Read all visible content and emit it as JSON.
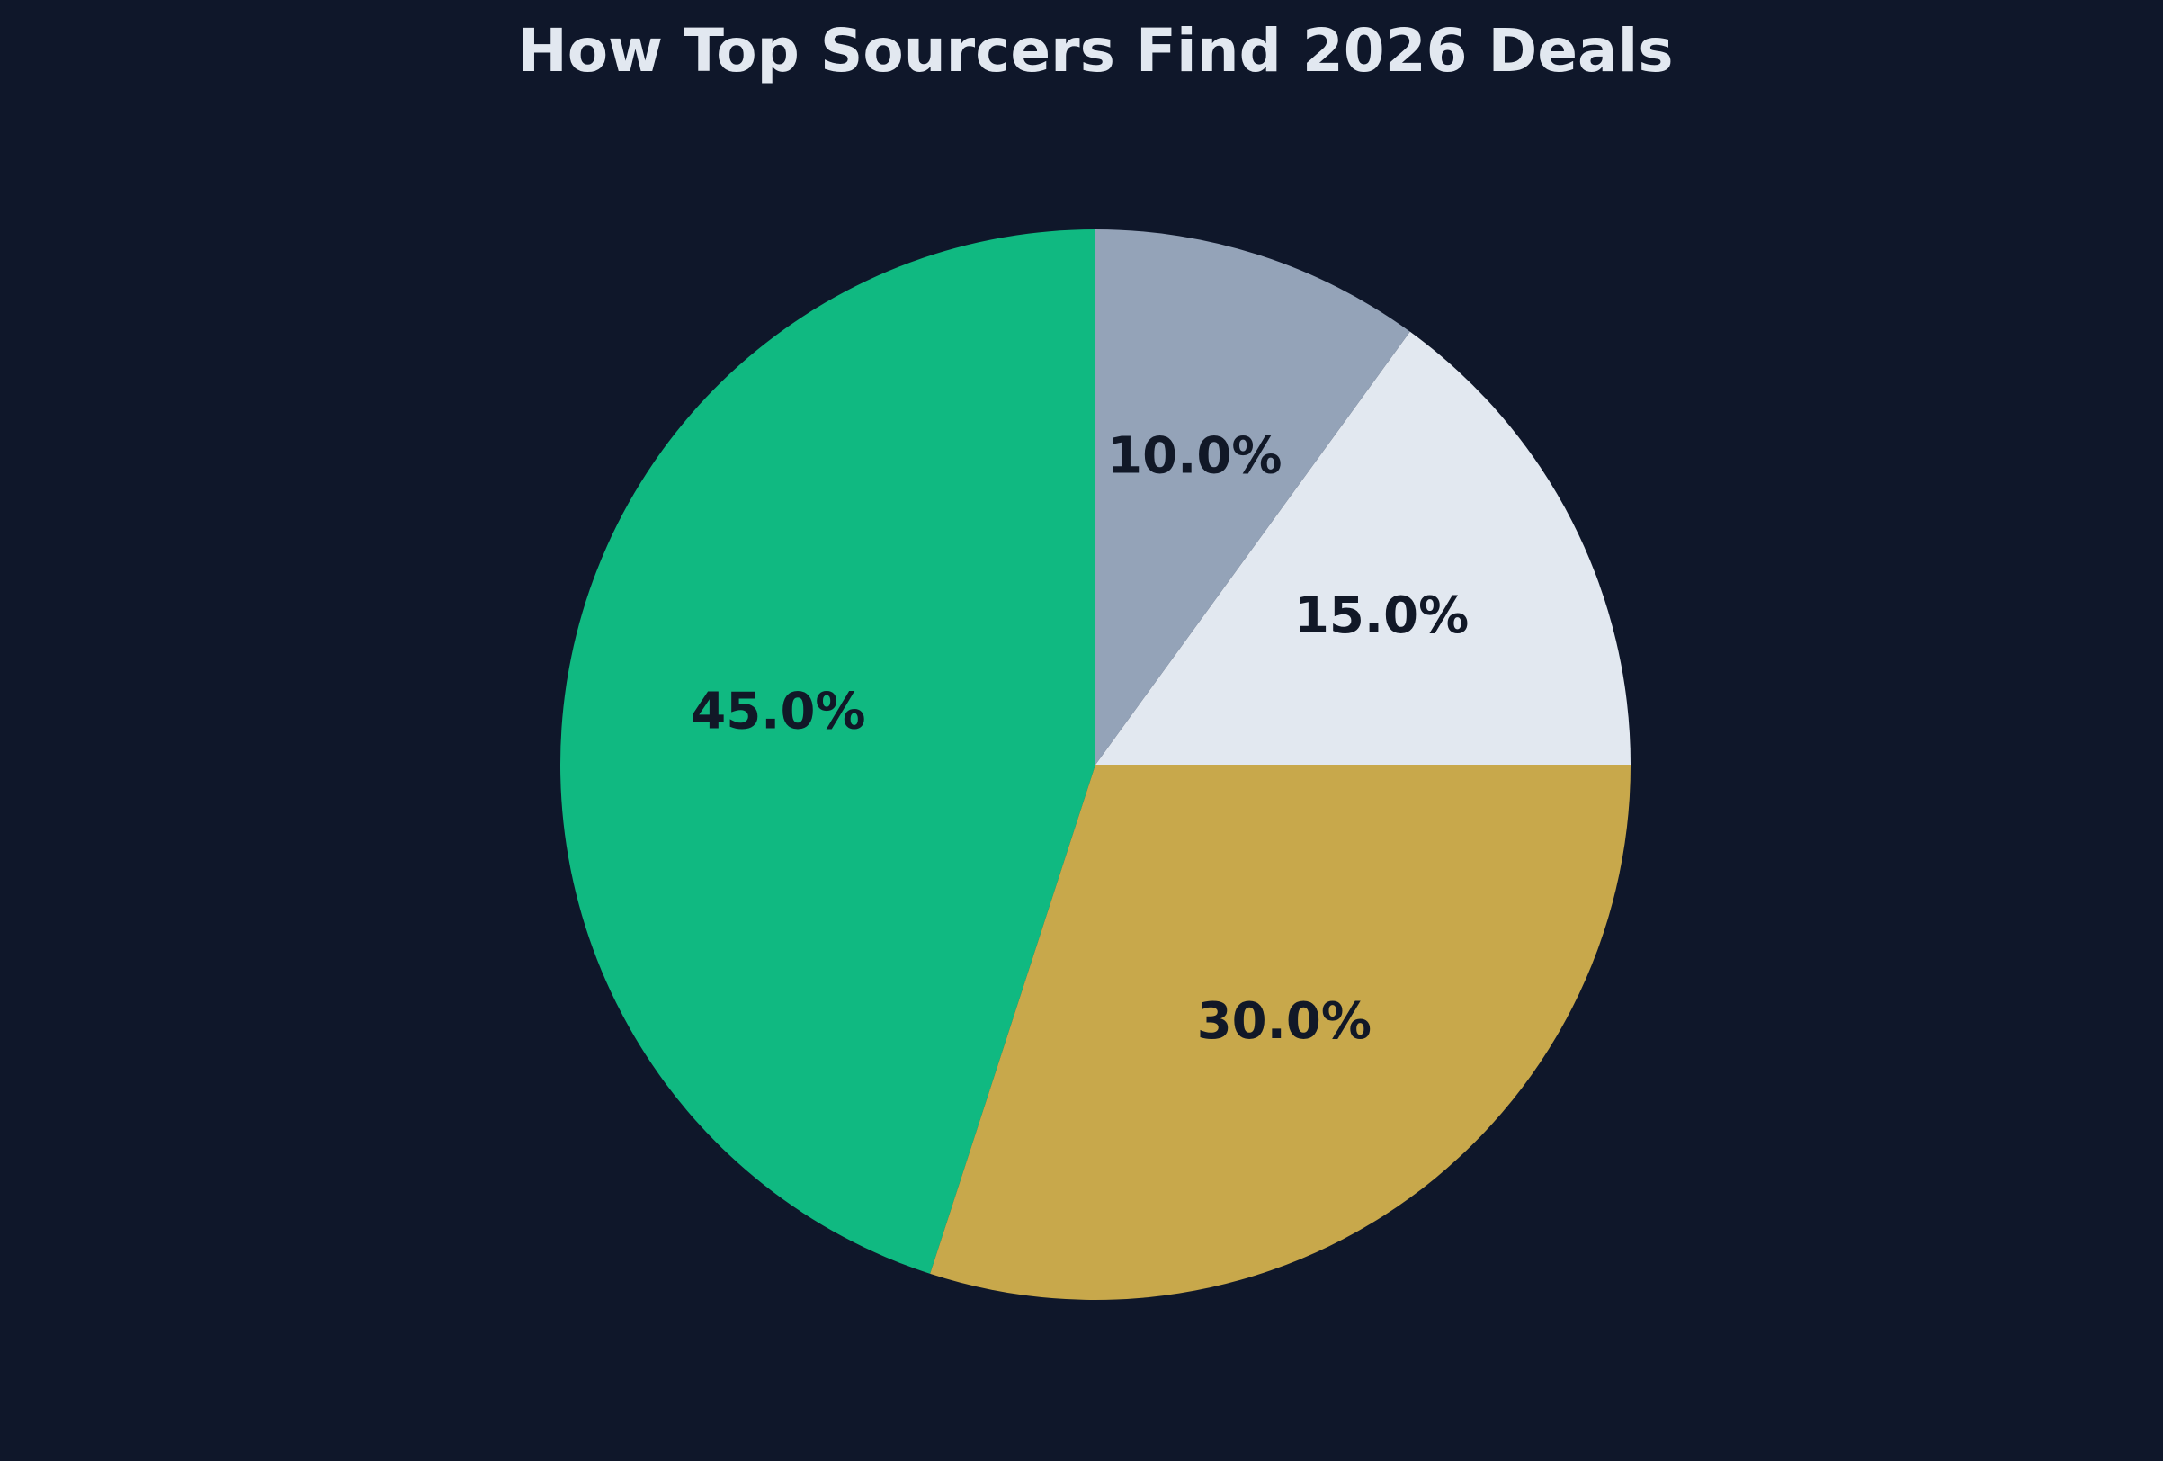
{
  "chart_data": {
    "type": "pie",
    "title": "How Top Sourcers Find 2026 Deals",
    "values": [
      45,
      30,
      15,
      10
    ],
    "value_labels": [
      "45.0%",
      "30.0%",
      "15.0%",
      "10.0%"
    ],
    "colors": [
      "#10b981",
      "#c8a84b",
      "#e2e8f0",
      "#94a3b8"
    ]
  }
}
